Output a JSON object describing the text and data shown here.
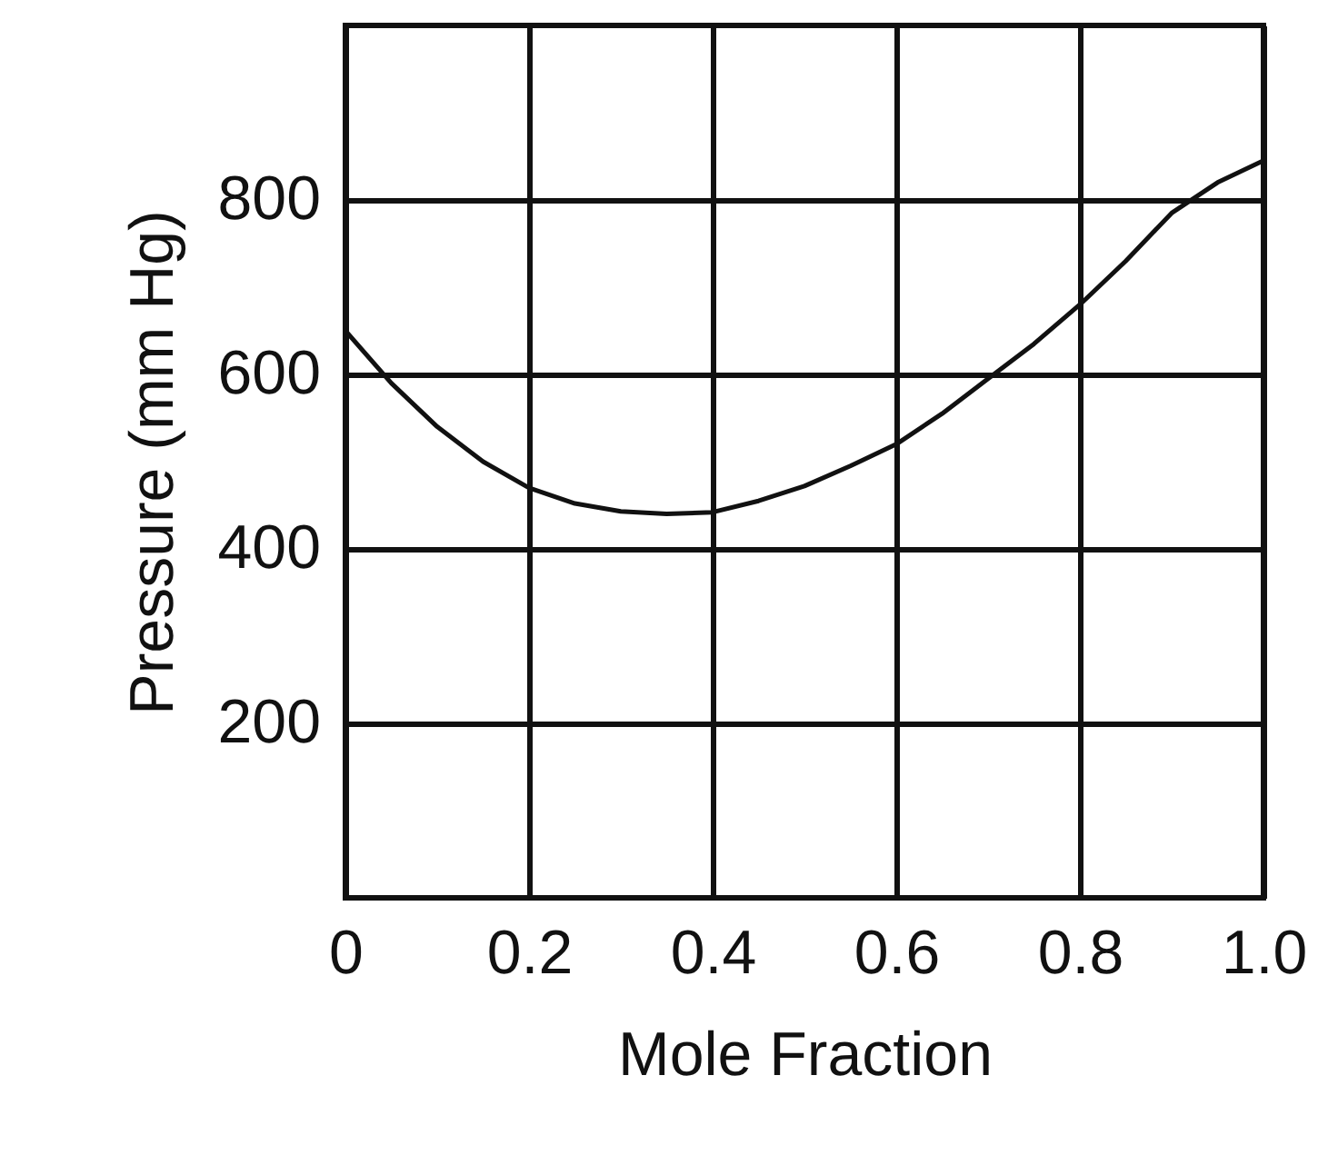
{
  "chart_data": {
    "type": "line",
    "xlabel": "Mole Fraction",
    "ylabel": "Pressure (mm Hg)",
    "x": [
      0,
      0.05,
      0.1,
      0.15,
      0.2,
      0.25,
      0.3,
      0.35,
      0.4,
      0.45,
      0.5,
      0.55,
      0.6,
      0.65,
      0.7,
      0.75,
      0.8,
      0.85,
      0.9,
      0.95,
      1
    ],
    "series": [
      {
        "color": "#111111",
        "values": [
          650,
          590,
          540,
          500,
          470,
          452,
          443,
          440,
          442,
          455,
          472,
          495,
          520,
          555,
          595,
          635,
          680,
          730,
          785,
          820,
          845
        ]
      }
    ],
    "xlim": [
      0,
      1
    ],
    "ylim": [
      0,
      1000
    ],
    "xticks": [
      {
        "value": 0,
        "label": "0"
      },
      0.2,
      0.4,
      0.6,
      0.8,
      {
        "value": 1,
        "label": "1.0"
      }
    ],
    "yticks": [
      200,
      400,
      600,
      800
    ],
    "grid": true
  }
}
